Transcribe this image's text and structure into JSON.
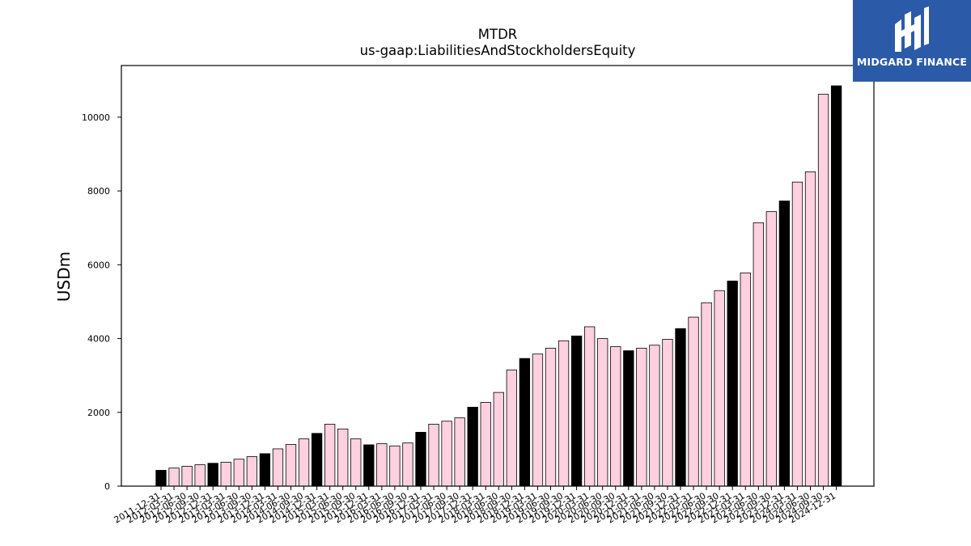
{
  "chart_data": {
    "type": "bar",
    "title": "MTDR",
    "subtitle": "us-gaap:LiabilitiesAndStockholdersEquity",
    "xlabel": "",
    "ylabel": "USDm",
    "ylim": [
      0,
      11400
    ],
    "yticks": [
      0,
      2000,
      4000,
      6000,
      8000,
      10000
    ],
    "grid": false,
    "colors": {
      "pink": "#ffd0e0",
      "black": "#000000",
      "edge": "#000000"
    },
    "categories": [
      "2011-12-31",
      "2012-03-31",
      "2012-06-30",
      "2012-09-30",
      "2012-12-31",
      "2013-03-31",
      "2013-06-30",
      "2013-09-30",
      "2013-12-31",
      "2014-03-31",
      "2014-06-30",
      "2014-09-30",
      "2014-12-31",
      "2015-03-31",
      "2015-06-30",
      "2015-09-30",
      "2015-12-31",
      "2016-03-31",
      "2016-06-30",
      "2016-09-30",
      "2016-12-31",
      "2017-03-31",
      "2017-06-30",
      "2017-09-30",
      "2017-12-31",
      "2018-03-31",
      "2018-06-30",
      "2018-09-30",
      "2018-12-31",
      "2019-03-31",
      "2019-06-30",
      "2019-09-30",
      "2019-12-31",
      "2020-03-31",
      "2020-06-30",
      "2020-09-30",
      "2020-12-31",
      "2021-03-31",
      "2021-06-30",
      "2021-09-30",
      "2021-12-31",
      "2022-03-31",
      "2022-06-30",
      "2022-09-30",
      "2022-12-31",
      "2023-03-31",
      "2023-06-30",
      "2023-09-30",
      "2023-12-31",
      "2024-03-31",
      "2024-06-30",
      "2024-09-30",
      "2024-12-31"
    ],
    "values": [
      430,
      490,
      540,
      580,
      620,
      650,
      730,
      800,
      880,
      1010,
      1130,
      1280,
      1430,
      1680,
      1550,
      1280,
      1120,
      1150,
      1090,
      1170,
      1460,
      1680,
      1760,
      1850,
      2140,
      2270,
      2540,
      3150,
      3460,
      3580,
      3740,
      3940,
      4070,
      4320,
      4000,
      3780,
      3670,
      3740,
      3820,
      3980,
      4270,
      4580,
      4970,
      5300,
      5560,
      5780,
      7140,
      7440,
      7730,
      8240,
      8520,
      10620,
      10850
    ],
    "highlighted": [
      0,
      4,
      8,
      12,
      16,
      20,
      24,
      28,
      32,
      36,
      40,
      44,
      48,
      52
    ]
  },
  "logo": {
    "text": "MIDGARD FINANCE",
    "icon": "midgard-logo-icon",
    "background": "#2b5ba8"
  }
}
